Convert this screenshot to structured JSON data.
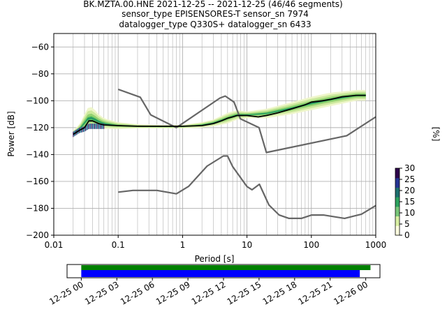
{
  "title": {
    "line1": "BK.MZTA.00.HNE   2021-12-25 -- 2021-12-25  (46/46 segments)",
    "line2": "sensor_type EPISENSORES-T sensor_sn 7974",
    "line3": "datalogger_type Q330S+ datalogger_sn 6433"
  },
  "chart_data": [
    {
      "type": "heatmap",
      "subtype": "probabilistic-power-spectral-density",
      "title": "BK.MZTA.00.HNE   2021-12-25 -- 2021-12-25  (46/46 segments)",
      "xlabel": "Period [s]",
      "ylabel": "Power [dB]",
      "xscale": "log",
      "xlim": [
        0.01,
        1000
      ],
      "ylim": [
        -200,
        -50
      ],
      "x_tick_labels": [
        "0.01",
        "0.1",
        "1",
        "10",
        "100",
        "1000"
      ],
      "x_tick_values": [
        0.01,
        0.1,
        1,
        10,
        100,
        1000
      ],
      "y_tick_labels": [
        "−200",
        "−180",
        "−160",
        "−140",
        "−120",
        "−100",
        "−80",
        "−60"
      ],
      "y_tick_values": [
        -200,
        -180,
        -160,
        -140,
        -120,
        -100,
        -80,
        -60
      ],
      "grid": true,
      "colorbar": {
        "label": "[%]",
        "range": [
          0,
          30
        ],
        "tick_labels": [
          "0",
          "5",
          "10",
          "15",
          "20",
          "25",
          "30"
        ],
        "tick_values": [
          0,
          5,
          10,
          15,
          20,
          25,
          30
        ],
        "colors": [
          "#ffffe0",
          "#d9f0a3",
          "#78c679",
          "#2ca25f",
          "#1d6f6f",
          "#253494",
          "#2d004b"
        ]
      },
      "mean_curve": {
        "period": [
          0.02,
          0.025,
          0.03,
          0.035,
          0.04,
          0.05,
          0.06,
          0.1,
          0.2,
          0.5,
          1,
          2,
          3,
          4,
          5,
          6,
          7,
          8,
          10,
          15,
          20,
          30,
          50,
          80,
          100,
          150,
          200,
          300,
          500,
          700
        ],
        "power": [
          -125,
          -122,
          -120,
          -115,
          -115,
          -117,
          -118,
          -118.5,
          -119,
          -119,
          -119,
          -118.5,
          -117,
          -115,
          -113,
          -112,
          -111,
          -111,
          -111,
          -112,
          -111,
          -109,
          -106,
          -103,
          -101,
          -100,
          -99,
          -97,
          -96,
          -96
        ]
      },
      "nlnm": {
        "period": [
          0.1,
          0.17,
          0.4,
          0.8,
          1.24,
          2.4,
          4.3,
          5,
          6,
          10,
          12,
          15.6,
          21.9,
          31.6,
          45,
          70,
          101,
          154,
          328,
          600,
          1000
        ],
        "power": [
          -168,
          -166.7,
          -166.7,
          -169.2,
          -163.7,
          -148.6,
          -141.1,
          -141.1,
          -149,
          -163.8,
          -166.2,
          -162.1,
          -177.5,
          -185,
          -187.5,
          -187.5,
          -185,
          -185,
          -187.5,
          -184.4,
          -178
        ]
      },
      "nhnm": {
        "period": [
          0.1,
          0.22,
          0.32,
          0.8,
          3.8,
          4.6,
          6.3,
          7.9,
          15.4,
          20,
          354.8,
          1000
        ],
        "power": [
          -91.5,
          -97.4,
          -110.5,
          -120,
          -98,
          -96.5,
          -101,
          -113.5,
          -120,
          -138.5,
          -126,
          -112
        ]
      },
      "histogram_band": {
        "period": [
          0.02,
          0.025,
          0.03,
          0.035,
          0.04,
          0.05,
          0.06,
          0.1,
          0.2,
          0.5,
          1,
          2,
          3,
          5,
          7,
          10,
          20,
          50,
          100,
          200,
          500,
          700
        ],
        "upper": [
          -122,
          -118,
          -110,
          -104,
          -105,
          -110,
          -113,
          -116,
          -117.5,
          -118,
          -118,
          -116,
          -114,
          -109,
          -107,
          -108,
          -106,
          -101,
          -97,
          -94,
          -92,
          -92
        ],
        "lower": [
          -127,
          -124,
          -123,
          -121,
          -121,
          -121,
          -121,
          -121,
          -120.5,
          -120.5,
          -120.5,
          -120,
          -119,
          -117,
          -114,
          -113,
          -113,
          -110,
          -107,
          -104,
          -100,
          -100
        ]
      }
    },
    {
      "type": "bar",
      "subtype": "data-coverage-timeline",
      "x_tick_labels": [
        "12-25 00",
        "12-25 03",
        "12-25 06",
        "12-25 09",
        "12-25 12",
        "12-25 15",
        "12-25 18",
        "12-25 21",
        "12-26 00"
      ],
      "x_tick_hours": [
        0,
        3,
        6,
        9,
        12,
        15,
        18,
        21,
        24
      ],
      "xlim_hours": [
        -1.2,
        25.2
      ],
      "bars": [
        {
          "name": "data",
          "color": "#008000",
          "start_hour": 0,
          "end_hour": 24.4
        },
        {
          "name": "used",
          "color": "#0000ff",
          "start_hour": 0,
          "end_hour": 23.5
        }
      ]
    }
  ]
}
